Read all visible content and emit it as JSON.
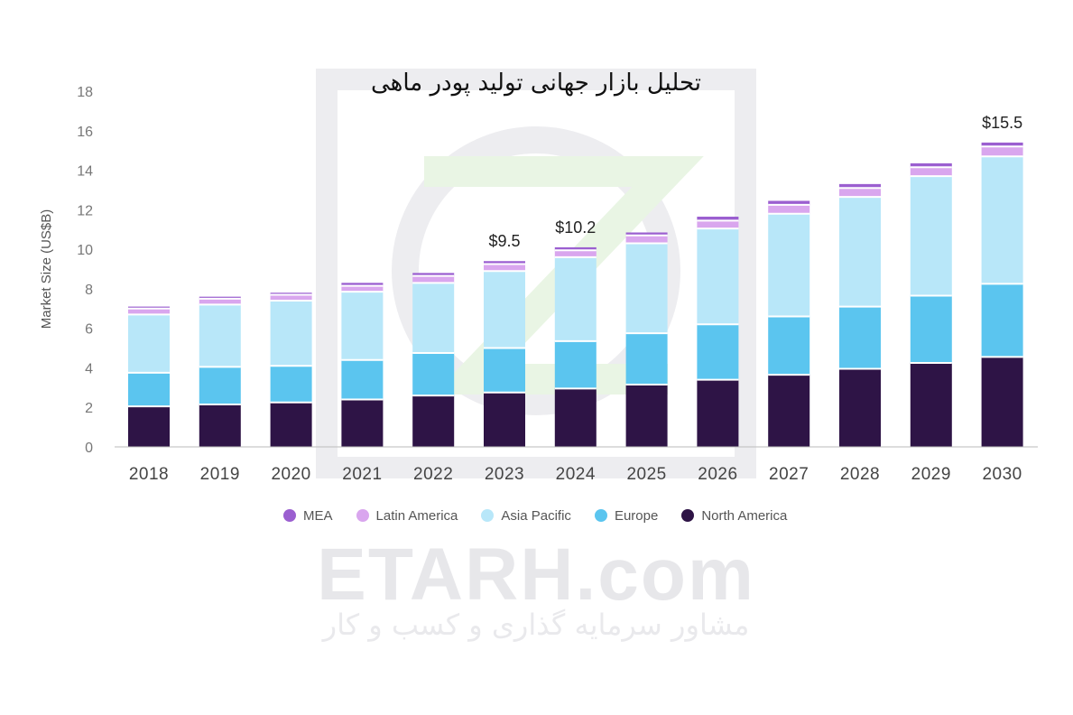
{
  "watermark": {
    "brand": "ETARH.com",
    "tagline": "مشاور سرمایه گذاری و کسب و کار"
  },
  "chart_data": {
    "type": "bar",
    "stacked": true,
    "title": "تحلیل بازار جهانی تولید پودر ماهی",
    "xlabel": "",
    "ylabel": "Market Size (US$B)",
    "ylim": [
      0,
      18
    ],
    "yticks": [
      0,
      2,
      4,
      6,
      8,
      10,
      12,
      14,
      16,
      18
    ],
    "grid": false,
    "legend_position": "bottom",
    "categories": [
      "2018",
      "2019",
      "2020",
      "2021",
      "2022",
      "2023",
      "2024",
      "2025",
      "2026",
      "2027",
      "2028",
      "2029",
      "2030"
    ],
    "series": [
      {
        "name": "North America",
        "color": "#2e1446",
        "values": [
          2.05,
          2.15,
          2.25,
          2.4,
          2.6,
          2.75,
          2.95,
          3.15,
          3.4,
          3.65,
          3.95,
          4.25,
          4.55
        ]
      },
      {
        "name": "Europe",
        "color": "#5bc5ef",
        "values": [
          1.7,
          1.9,
          1.85,
          2.0,
          2.15,
          2.25,
          2.4,
          2.6,
          2.8,
          2.95,
          3.15,
          3.4,
          3.7
        ]
      },
      {
        "name": "Asia Pacific",
        "color": "#b8e7f9",
        "values": [
          2.95,
          3.15,
          3.3,
          3.45,
          3.55,
          3.9,
          4.25,
          4.55,
          4.85,
          5.2,
          5.55,
          6.05,
          6.45
        ]
      },
      {
        "name": "Latin America",
        "color": "#d9a6ee",
        "values": [
          0.3,
          0.3,
          0.3,
          0.3,
          0.35,
          0.35,
          0.35,
          0.4,
          0.4,
          0.45,
          0.45,
          0.45,
          0.5
        ]
      },
      {
        "name": "MEA",
        "color": "#9b5fd0",
        "values": [
          0.1,
          0.1,
          0.1,
          0.15,
          0.15,
          0.15,
          0.15,
          0.15,
          0.2,
          0.2,
          0.2,
          0.2,
          0.2
        ]
      }
    ],
    "annotations": [
      {
        "category": "2023",
        "label": "$9.5"
      },
      {
        "category": "2024",
        "label": "$10.2"
      },
      {
        "category": "2030",
        "label": "$15.5"
      }
    ]
  }
}
